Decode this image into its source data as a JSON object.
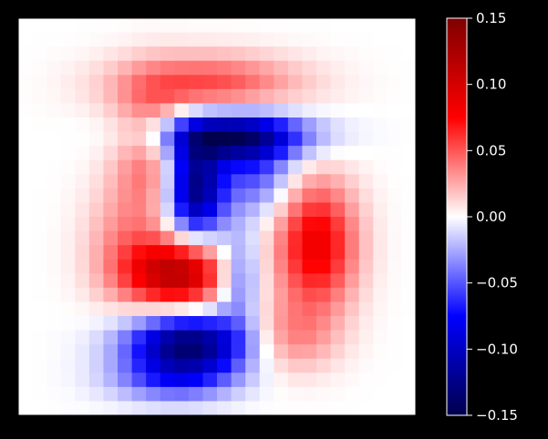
{
  "figure": {
    "background": "#000000",
    "axes_background": "#ffffff",
    "text_color": "#ffffff"
  },
  "chart_data": {
    "type": "heatmap",
    "title": "",
    "xlabel": "",
    "ylabel": "",
    "colormap": "seismic",
    "grid": false,
    "x_ticks_visible": false,
    "y_ticks_visible": false,
    "colorbar": {
      "vmin": -0.15,
      "vmax": 0.15,
      "ticks": [
        0.15,
        0.1,
        0.05,
        0.0,
        -0.05,
        -0.1,
        -0.15
      ],
      "tick_labels": [
        "0.15",
        "0.10",
        "0.05",
        "0.00",
        "−0.05",
        "−0.10",
        "−0.15"
      ]
    },
    "nrows": 28,
    "ncols": 28,
    "grid_blobs": [
      {
        "row": 4.2,
        "col": 12.8,
        "srow": 1.5,
        "scol": 4.5,
        "value": 0.055
      },
      {
        "row": 9.0,
        "col": 8.8,
        "srow": 3.2,
        "scol": 1.8,
        "value": 0.045
      },
      {
        "row": 15.5,
        "col": 7.0,
        "srow": 3.0,
        "scol": 2.0,
        "value": 0.03
      },
      {
        "row": 17.5,
        "col": 10.8,
        "srow": 1.7,
        "scol": 2.5,
        "value": 0.115
      },
      {
        "row": 15.5,
        "col": 20.5,
        "srow": 3.2,
        "scol": 2.0,
        "value": 0.085
      },
      {
        "row": 22.0,
        "col": 18.5,
        "srow": 1.8,
        "scol": 2.3,
        "value": 0.035
      },
      {
        "row": 7.8,
        "col": 14.5,
        "srow": 1.2,
        "scol": 3.6,
        "value": -0.13
      },
      {
        "row": 11.5,
        "col": 12.0,
        "srow": 2.4,
        "scol": 1.4,
        "value": -0.13
      },
      {
        "row": 10.5,
        "col": 16.2,
        "srow": 2.0,
        "scol": 1.8,
        "value": -0.05
      },
      {
        "row": 17.8,
        "col": 15.0,
        "srow": 2.2,
        "scol": 1.1,
        "value": -0.055
      },
      {
        "row": 22.5,
        "col": 11.5,
        "srow": 1.5,
        "scol": 3.0,
        "value": -0.135
      },
      {
        "row": 25.0,
        "col": 10.5,
        "srow": 1.1,
        "scol": 3.0,
        "value": -0.05
      }
    ]
  }
}
